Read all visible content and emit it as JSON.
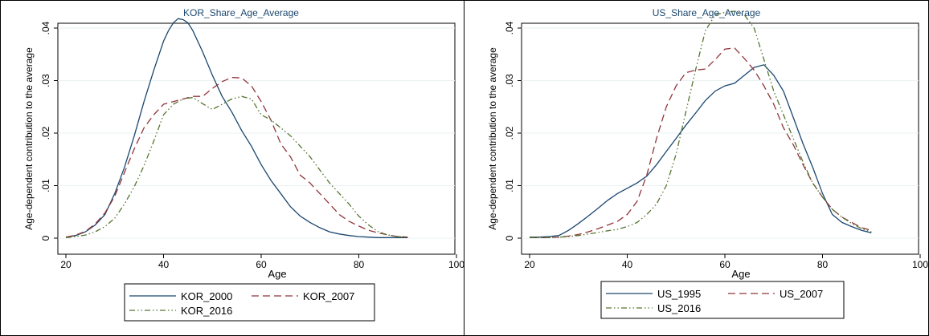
{
  "chart_data": [
    {
      "type": "line",
      "title": "KOR_Share_Age_Average",
      "xlabel": "Age",
      "ylabel": "Age-dependent contribution to the average",
      "xlim": [
        20,
        100
      ],
      "ylim": [
        0,
        0.04
      ],
      "xticks": [
        "20",
        "40",
        "60",
        "80",
        "100"
      ],
      "yticks": [
        "0",
        ".01",
        ".02",
        ".03",
        ".04"
      ],
      "grid": "horizontal",
      "legend_position": "bottom",
      "series": [
        {
          "name": "KOR_2000",
          "color": "#1a476f",
          "dash": "solid",
          "x": [
            20,
            22,
            24,
            26,
            28,
            30,
            32,
            34,
            36,
            38,
            40,
            41,
            42,
            43,
            44,
            45,
            46,
            48,
            50,
            52,
            54,
            56,
            58,
            60,
            62,
            64,
            66,
            68,
            70,
            72,
            74,
            76,
            78,
            80,
            82,
            84,
            86,
            88,
            90
          ],
          "y": [
            0.0002,
            0.0005,
            0.0012,
            0.0025,
            0.0045,
            0.0085,
            0.0135,
            0.0195,
            0.026,
            0.032,
            0.0375,
            0.0395,
            0.041,
            0.0418,
            0.0416,
            0.041,
            0.0395,
            0.0355,
            0.031,
            0.027,
            0.024,
            0.0205,
            0.0175,
            0.014,
            0.011,
            0.0085,
            0.006,
            0.0042,
            0.003,
            0.002,
            0.0012,
            0.0008,
            0.0005,
            0.0003,
            0.0002,
            0.0001,
            0.0001,
            0.0001,
            0.0001
          ]
        },
        {
          "name": "KOR_2007",
          "color": "#90353b",
          "dash": "dashed",
          "x": [
            20,
            22,
            24,
            26,
            28,
            30,
            32,
            34,
            36,
            38,
            40,
            42,
            44,
            46,
            48,
            50,
            52,
            54,
            56,
            58,
            60,
            62,
            64,
            66,
            68,
            70,
            72,
            74,
            76,
            78,
            80,
            82,
            84,
            86,
            88,
            90
          ],
          "y": [
            0.0002,
            0.0006,
            0.0013,
            0.0027,
            0.0048,
            0.008,
            0.0125,
            0.017,
            0.021,
            0.0235,
            0.0255,
            0.026,
            0.0265,
            0.027,
            0.027,
            0.0285,
            0.0298,
            0.0306,
            0.0305,
            0.029,
            0.026,
            0.0225,
            0.018,
            0.0155,
            0.012,
            0.0105,
            0.0085,
            0.0065,
            0.0045,
            0.0032,
            0.0023,
            0.0015,
            0.001,
            0.0006,
            0.0003,
            0.0002
          ]
        },
        {
          "name": "KOR_2016",
          "color": "#55752f",
          "dash": "dashdotdot",
          "x": [
            20,
            22,
            24,
            26,
            28,
            30,
            32,
            34,
            36,
            38,
            40,
            42,
            44,
            46,
            48,
            50,
            52,
            54,
            56,
            58,
            60,
            62,
            64,
            66,
            68,
            70,
            72,
            74,
            76,
            78,
            80,
            82,
            84,
            86,
            88,
            90
          ],
          "y": [
            0.0001,
            0.0003,
            0.0006,
            0.0012,
            0.0022,
            0.0038,
            0.0065,
            0.0098,
            0.0138,
            0.0185,
            0.0235,
            0.0255,
            0.0265,
            0.0268,
            0.0256,
            0.0245,
            0.0255,
            0.0265,
            0.027,
            0.0265,
            0.0235,
            0.0225,
            0.021,
            0.0195,
            0.0175,
            0.0155,
            0.013,
            0.0105,
            0.0085,
            0.0065,
            0.0042,
            0.0025,
            0.0012,
            0.0006,
            0.0003,
            0.0002
          ]
        }
      ]
    },
    {
      "type": "line",
      "title": "US_Share_Age_Average",
      "xlabel": "Age",
      "ylabel": "Age-dependent contribution to the average",
      "xlim": [
        20,
        100
      ],
      "ylim": [
        0,
        0.04
      ],
      "xticks": [
        "20",
        "40",
        "60",
        "80",
        "100"
      ],
      "yticks": [
        "0",
        ".01",
        ".02",
        ".03",
        ".04"
      ],
      "grid": "horizontal",
      "legend_position": "bottom",
      "series": [
        {
          "name": "US_1995",
          "color": "#1a476f",
          "dash": "solid",
          "x": [
            20,
            22,
            24,
            26,
            28,
            30,
            32,
            34,
            36,
            38,
            40,
            42,
            44,
            46,
            48,
            50,
            52,
            54,
            56,
            58,
            60,
            62,
            64,
            66,
            68,
            70,
            72,
            74,
            76,
            78,
            80,
            82,
            84,
            86,
            88,
            90
          ],
          "y": [
            0.0002,
            0.0002,
            0.0003,
            0.0005,
            0.0015,
            0.0028,
            0.0042,
            0.0057,
            0.0072,
            0.0085,
            0.0095,
            0.0105,
            0.0118,
            0.014,
            0.0165,
            0.019,
            0.0215,
            0.0238,
            0.0262,
            0.028,
            0.029,
            0.0295,
            0.031,
            0.0325,
            0.033,
            0.031,
            0.028,
            0.023,
            0.018,
            0.0135,
            0.0085,
            0.0045,
            0.003,
            0.0022,
            0.0015,
            0.001
          ]
        },
        {
          "name": "US_2007",
          "color": "#90353b",
          "dash": "dashed",
          "x": [
            20,
            22,
            24,
            26,
            28,
            30,
            32,
            34,
            36,
            38,
            40,
            42,
            44,
            46,
            48,
            50,
            52,
            54,
            56,
            58,
            60,
            62,
            64,
            66,
            68,
            70,
            72,
            74,
            76,
            78,
            80,
            82,
            84,
            86,
            88,
            90
          ],
          "y": [
            0.0001,
            0.0001,
            0.0001,
            0.0002,
            0.0004,
            0.0007,
            0.0012,
            0.0018,
            0.0025,
            0.0032,
            0.0045,
            0.007,
            0.012,
            0.019,
            0.025,
            0.029,
            0.0315,
            0.032,
            0.0322,
            0.034,
            0.036,
            0.0362,
            0.0342,
            0.032,
            0.029,
            0.0255,
            0.021,
            0.0178,
            0.014,
            0.0105,
            0.0078,
            0.0055,
            0.004,
            0.003,
            0.002,
            0.0015
          ]
        },
        {
          "name": "US_2016",
          "color": "#55752f",
          "dash": "dashdotdot",
          "x": [
            20,
            22,
            24,
            26,
            28,
            30,
            32,
            34,
            36,
            38,
            40,
            42,
            44,
            46,
            48,
            50,
            52,
            54,
            56,
            58,
            60,
            62,
            64,
            66,
            68,
            70,
            72,
            74,
            76,
            78,
            80,
            82,
            84,
            86,
            88,
            90
          ],
          "y": [
            0.0001,
            0.0001,
            0.0001,
            0.0002,
            0.0003,
            0.0005,
            0.0008,
            0.0011,
            0.0014,
            0.0017,
            0.0022,
            0.003,
            0.0045,
            0.0065,
            0.01,
            0.016,
            0.024,
            0.032,
            0.0395,
            0.0425,
            0.043,
            0.0432,
            0.0425,
            0.04,
            0.034,
            0.028,
            0.0235,
            0.019,
            0.0145,
            0.0105,
            0.0078,
            0.0055,
            0.004,
            0.0028,
            0.0018,
            0.0012
          ]
        }
      ]
    }
  ]
}
